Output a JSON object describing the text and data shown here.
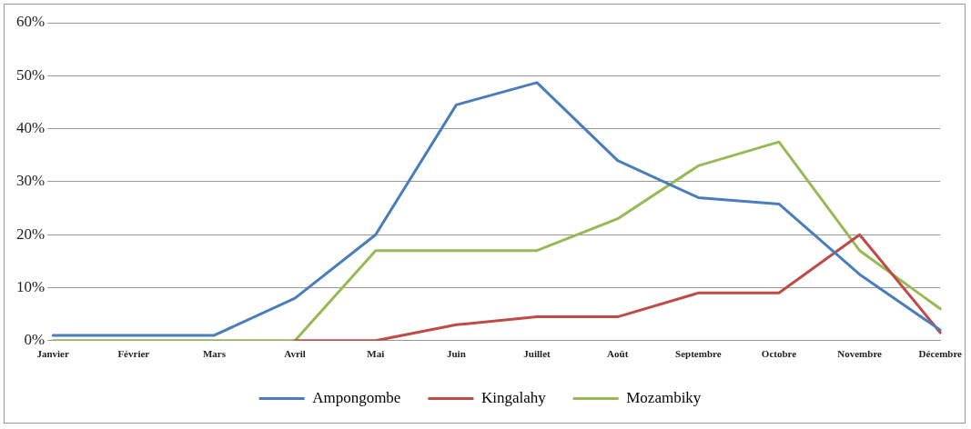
{
  "chart_data": {
    "type": "line",
    "categories": [
      "Janvier",
      "Février",
      "Mars",
      "Avril",
      "Mai",
      "Juin",
      "Juillet",
      "Août",
      "Septembre",
      "Octobre",
      "Novembre",
      "Décembre"
    ],
    "series": [
      {
        "name": "Ampongombe",
        "color": "#4a7ebb",
        "values": [
          1,
          1,
          1,
          8,
          20,
          44.5,
          48.7,
          34,
          27,
          25.8,
          12.5,
          2
        ]
      },
      {
        "name": "Kingalahy",
        "color": "#be4b48",
        "values": [
          null,
          null,
          null,
          0,
          0,
          3,
          4.5,
          4.5,
          9,
          9,
          20,
          1.5
        ]
      },
      {
        "name": "Mozambiky",
        "color": "#98b954",
        "values": [
          0,
          0,
          0,
          0,
          17,
          17,
          17,
          23,
          33,
          37.5,
          17,
          6
        ]
      }
    ],
    "ylim": [
      0,
      60
    ],
    "yticks": [
      {
        "value": 0,
        "label": "0%"
      },
      {
        "value": 10,
        "label": "10%"
      },
      {
        "value": 20,
        "label": "20%"
      },
      {
        "value": 30,
        "label": "30%"
      },
      {
        "value": 40,
        "label": "40%"
      },
      {
        "value": 50,
        "label": "50%"
      },
      {
        "value": 60,
        "label": "60%"
      }
    ],
    "grid": "y",
    "legend": "bottom",
    "marker": "none",
    "line_style": "solid"
  }
}
